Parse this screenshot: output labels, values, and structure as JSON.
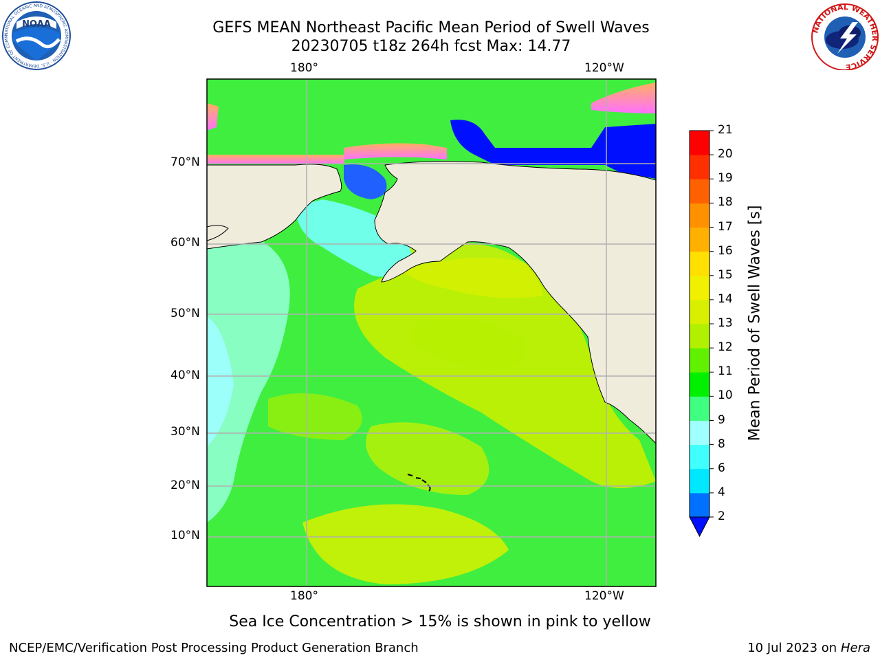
{
  "title": {
    "line1": "GEFS MEAN Northeast Pacific Mean Period of Swell Waves",
    "line2": "20230705 t18z 264h fcst   Max: 14.77"
  },
  "map": {
    "lon_labels": [
      "180°",
      "120°W"
    ],
    "lat_labels": [
      "70°N",
      "60°N",
      "50°N",
      "40°N",
      "30°N",
      "20°N",
      "10°N"
    ],
    "land_color": "#efecdc",
    "grid_color": "#b0b0b0"
  },
  "colorbar": {
    "label": "Mean Period of Swell Waves [s]",
    "ticks": [
      "2",
      "4",
      "6",
      "8",
      "9",
      "10",
      "11",
      "12",
      "13",
      "14",
      "15",
      "16",
      "17",
      "18",
      "19",
      "20",
      "21"
    ],
    "colors": [
      "#0070ff",
      "#00e8ff",
      "#40ffff",
      "#a0ffff",
      "#40ff80",
      "#00f000",
      "#60f000",
      "#b0f000",
      "#d8f000",
      "#f0f000",
      "#ffe000",
      "#ffb000",
      "#ff9000",
      "#ff6000",
      "#ff3000",
      "#ff0000"
    ],
    "under_color": "#0010ff"
  },
  "caption": "Sea Ice Concentration > 15% is shown in pink to yellow",
  "footer": {
    "left": "NCEP/EMC/Verification Post Processing Product Generation Branch",
    "right_date": "10 Jul 2023 on ",
    "right_host": "Hera"
  },
  "logos": {
    "noaa": "NOAA",
    "noaa_ring": "NATIONAL OCEANIC AND ATMOSPHERIC ADMINISTRATION · U.S. DEPARTMENT OF COMMERCE",
    "nws_ring": "NATIONAL WEATHER SERVICE"
  }
}
